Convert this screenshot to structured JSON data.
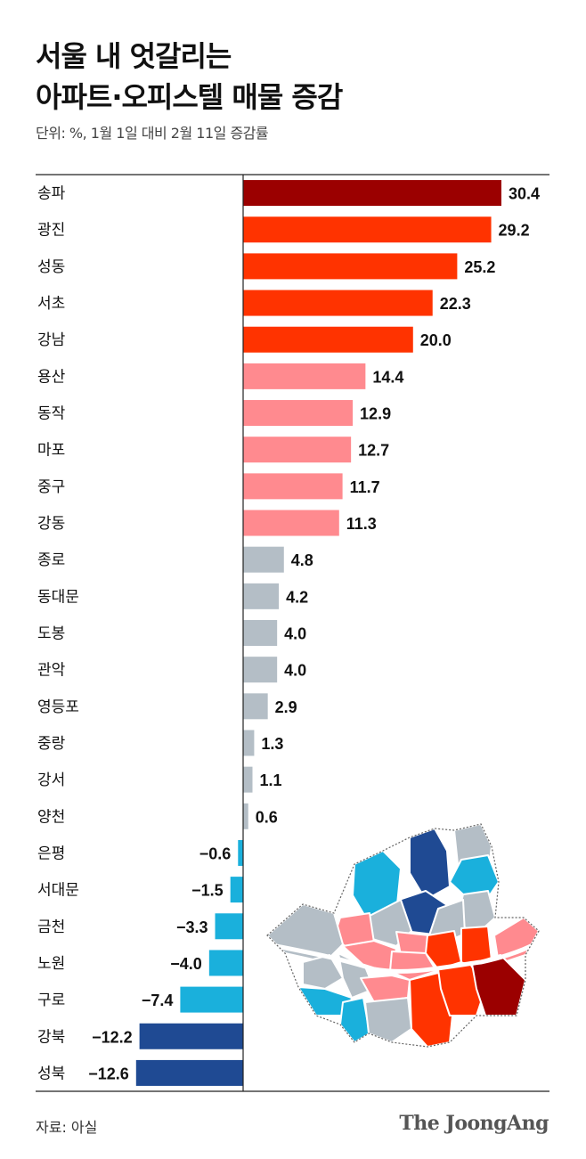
{
  "header": {
    "title_line1": "서울 내 엇갈리는",
    "title_line2": "아파트·오피스텔 매물 증감",
    "subtitle": "단위: %, 1월 1일 대비 2월 11일 증감률"
  },
  "footer": {
    "source": "자료: 아실",
    "logo": "The JoongAng"
  },
  "colors": {
    "top": "#9b0000",
    "high": "#ff3300",
    "mid": "#ff8a8f",
    "low": "#b4bec6",
    "negative": "#1ab0dc",
    "strong_negative": "#1f4a93"
  },
  "chart_data": {
    "type": "bar",
    "orientation": "horizontal",
    "title": "서울 내 엇갈리는 아파트·오피스텔 매물 증감",
    "subtitle": "단위: %, 1월 1일 대비 2월 11일 증감률",
    "categories": [
      "송파",
      "광진",
      "성동",
      "서초",
      "강남",
      "용산",
      "동작",
      "마포",
      "중구",
      "강동",
      "종로",
      "동대문",
      "도봉",
      "관악",
      "영등포",
      "중랑",
      "강서",
      "양천",
      "은평",
      "서대문",
      "금천",
      "노원",
      "구로",
      "강북",
      "성북"
    ],
    "values": [
      30.4,
      29.2,
      25.2,
      22.3,
      20.0,
      14.4,
      12.9,
      12.7,
      11.7,
      11.3,
      4.8,
      4.2,
      4.0,
      4.0,
      2.9,
      1.3,
      1.1,
      0.6,
      -0.6,
      -1.5,
      -3.3,
      -4.0,
      -7.4,
      -12.2,
      -12.6
    ],
    "labels": [
      "30.4",
      "29.2",
      "25.2",
      "22.3",
      "20.0",
      "14.4",
      "12.9",
      "12.7",
      "11.7",
      "11.3",
      "4.8",
      "4.2",
      "4.0",
      "4.0",
      "2.9",
      "1.3",
      "1.1",
      "0.6",
      "−0.6",
      "−1.5",
      "−3.3",
      "−4.0",
      "−7.4",
      "−12.2",
      "−12.6"
    ],
    "color_groups": [
      "top",
      "high",
      "high",
      "high",
      "high",
      "mid",
      "mid",
      "mid",
      "mid",
      "mid",
      "low",
      "low",
      "low",
      "low",
      "low",
      "low",
      "low",
      "low",
      "negative",
      "negative",
      "negative",
      "negative",
      "negative",
      "strong_negative",
      "strong_negative"
    ],
    "xlim": [
      -13.0,
      33.0
    ],
    "grid": false,
    "legend": "none"
  }
}
